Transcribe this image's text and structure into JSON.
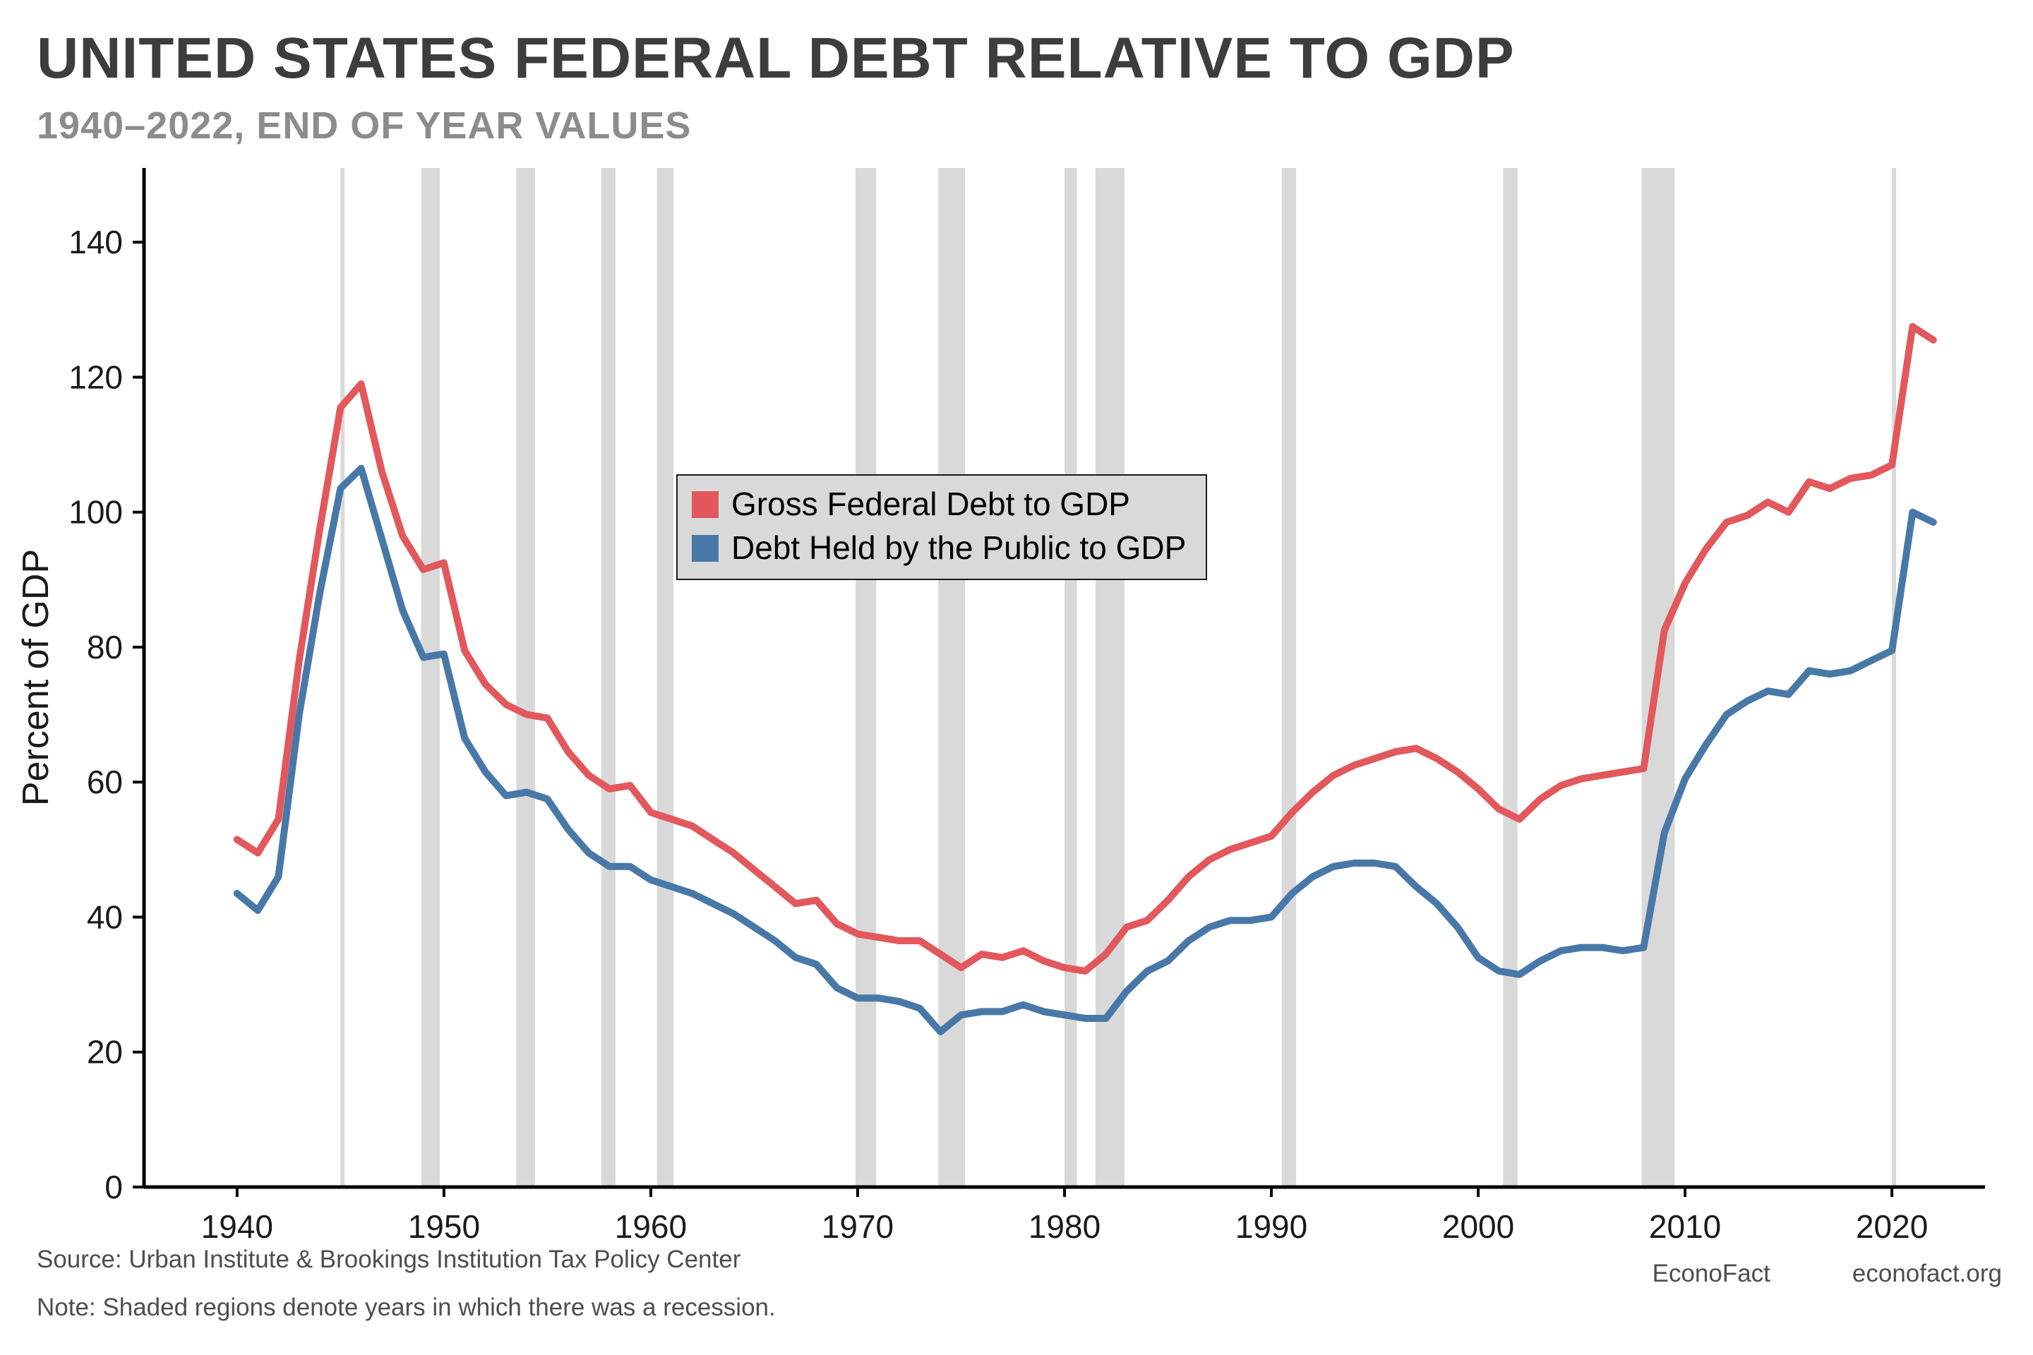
{
  "header": {
    "title": "UNITED STATES FEDERAL DEBT RELATIVE TO GDP",
    "subtitle": "1940–2022, END OF YEAR VALUES"
  },
  "footer": {
    "source": "Source: Urban Institute & Brookings Institution Tax Policy Center",
    "note": "Note: Shaded regions denote years in which there was a recession.",
    "brand": "EconoFact",
    "site": "econofact.org"
  },
  "chart_data": {
    "type": "line",
    "title": "UNITED STATES FEDERAL DEBT RELATIVE TO GDP",
    "subtitle": "1940–2022, END OF YEAR VALUES",
    "xlabel": "",
    "ylabel": "Percent of GDP",
    "xlim": [
      1935.5,
      2024.5
    ],
    "ylim": [
      0,
      151
    ],
    "yticks": [
      0,
      20,
      40,
      60,
      80,
      100,
      120,
      140
    ],
    "xticks": [
      1940,
      1950,
      1960,
      1970,
      1980,
      1990,
      2000,
      2010,
      2020
    ],
    "grid": false,
    "legend_position": "upper-left-center",
    "recession_color": "#d9d9d9",
    "recessions": [
      [
        1945.0,
        1945.2
      ],
      [
        1948.9,
        1949.8
      ],
      [
        1953.5,
        1954.4
      ],
      [
        1957.6,
        1958.3
      ],
      [
        1960.3,
        1961.1
      ],
      [
        1969.9,
        1970.9
      ],
      [
        1973.9,
        1975.2
      ],
      [
        1980.0,
        1980.6
      ],
      [
        1981.5,
        1982.9
      ],
      [
        1990.5,
        1991.2
      ],
      [
        2001.2,
        2001.9
      ],
      [
        2007.9,
        2009.5
      ],
      [
        2020.0,
        2020.2
      ]
    ],
    "years": [
      1940,
      1941,
      1942,
      1943,
      1944,
      1945,
      1946,
      1947,
      1948,
      1949,
      1950,
      1951,
      1952,
      1953,
      1954,
      1955,
      1956,
      1957,
      1958,
      1959,
      1960,
      1961,
      1962,
      1963,
      1964,
      1965,
      1966,
      1967,
      1968,
      1969,
      1970,
      1971,
      1972,
      1973,
      1974,
      1975,
      1976,
      1977,
      1978,
      1979,
      1980,
      1981,
      1982,
      1983,
      1984,
      1985,
      1986,
      1987,
      1988,
      1989,
      1990,
      1991,
      1992,
      1993,
      1994,
      1995,
      1996,
      1997,
      1998,
      1999,
      2000,
      2001,
      2002,
      2003,
      2004,
      2005,
      2006,
      2007,
      2008,
      2009,
      2010,
      2011,
      2012,
      2013,
      2014,
      2015,
      2016,
      2017,
      2018,
      2019,
      2020,
      2021,
      2022
    ],
    "series": [
      {
        "id": "gross-federal-debt",
        "label": "Gross Federal Debt to GDP",
        "color": "#e2585c",
        "values": [
          51.5,
          49.5,
          54.5,
          78,
          97.5,
          115.5,
          119,
          106,
          96.5,
          91.5,
          92.5,
          79.5,
          74.5,
          71.5,
          70,
          69.5,
          64.5,
          61,
          59,
          59.5,
          55.5,
          54.5,
          53.5,
          51.5,
          49.5,
          47,
          44.5,
          42,
          42.5,
          39,
          37.5,
          37,
          36.5,
          36.5,
          34.5,
          32.5,
          34.5,
          34,
          35,
          33.5,
          32.5,
          32,
          34.5,
          38.5,
          39.5,
          42.5,
          46,
          48.5,
          50,
          51,
          52,
          55.5,
          58.5,
          61,
          62.5,
          63.5,
          64.5,
          65,
          63.5,
          61.5,
          59,
          56,
          54.5,
          57.5,
          59.5,
          60.5,
          61,
          61.5,
          62,
          82.5,
          89.5,
          94.5,
          98.5,
          99.5,
          101.5,
          100,
          104.5,
          103.5,
          105,
          105.5,
          107,
          127.5,
          125.5
        ]
      },
      {
        "id": "debt-held-by-public",
        "label": "Debt Held by the Public to GDP",
        "color": "#4878a8",
        "values": [
          43.5,
          41,
          46,
          70,
          88,
          103.5,
          106.5,
          96,
          85.5,
          78.5,
          79,
          66.5,
          61.5,
          58,
          58.5,
          57.5,
          53,
          49.5,
          47.5,
          47.5,
          45.5,
          44.5,
          43.5,
          42,
          40.5,
          38.5,
          36.5,
          34,
          33,
          29.5,
          28,
          28,
          27.5,
          26.5,
          23,
          25.5,
          26,
          26,
          27,
          26,
          25.5,
          25,
          25,
          29,
          32,
          33.5,
          36.5,
          38.5,
          39.5,
          39.5,
          40,
          43.5,
          46,
          47.5,
          48,
          48,
          47.5,
          44.5,
          42,
          38.5,
          34,
          32,
          31.5,
          33.5,
          35,
          35.5,
          35.5,
          35,
          35.5,
          52.5,
          60.5,
          65.5,
          70,
          72,
          73.5,
          73,
          76.5,
          76,
          76.5,
          78,
          79.5,
          100,
          98.5
        ]
      }
    ]
  }
}
